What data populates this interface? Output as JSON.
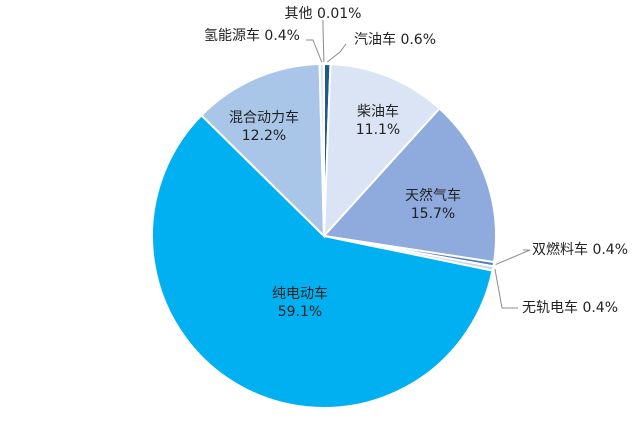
{
  "chart_data": {
    "type": "pie",
    "title": "",
    "unit": "%",
    "slices": [
      {
        "label": "汽油车",
        "value": 0.6,
        "display": "0.6%",
        "color": "#1f5a8a"
      },
      {
        "label": "柴油车",
        "value": 11.1,
        "display": "11.1%",
        "color": "#dbe4f4"
      },
      {
        "label": "天然气车",
        "value": 15.7,
        "display": "15.7%",
        "color": "#8faadc"
      },
      {
        "label": "双燃料车",
        "value": 0.4,
        "display": "0.4%",
        "color": "#4f7fbf"
      },
      {
        "label": "无轨电车",
        "value": 0.4,
        "display": "0.4%",
        "color": "#c9d6ea"
      },
      {
        "label": "纯电动车",
        "value": 59.1,
        "display": "59.1%",
        "color": "#00b0f0"
      },
      {
        "label": "混合动力车",
        "value": 12.2,
        "display": "12.2%",
        "color": "#a9c6e8"
      },
      {
        "label": "氢能源车",
        "value": 0.4,
        "display": "0.4%",
        "color": "#dce6f2"
      },
      {
        "label": "其他",
        "value": 0.01,
        "display": "0.01%",
        "color": "#bdd7ee"
      }
    ]
  }
}
